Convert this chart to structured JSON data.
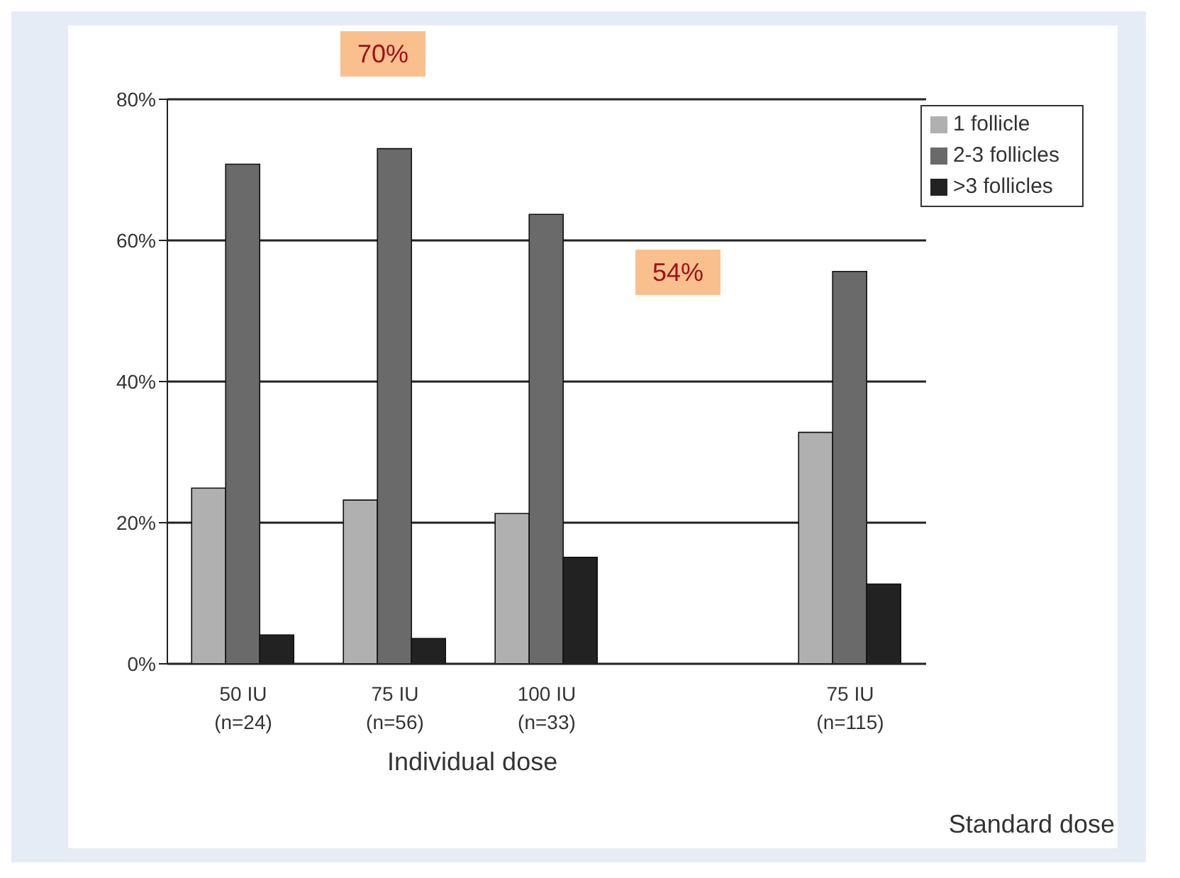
{
  "chart_data": {
    "type": "bar",
    "categories": [
      "50 IU (n=24)",
      "75 IU (n=56)",
      "100 IU (n=33)",
      null,
      "75 IU (n=115)"
    ],
    "series": [
      {
        "name": "1 follicle",
        "color": "#b0b0b0",
        "values": [
          24.9,
          23.2,
          21.3,
          null,
          32.8
        ]
      },
      {
        "name": "2-3 follicles",
        "color": "#6a6a6a",
        "values": [
          70.8,
          73,
          63.7,
          null,
          55.6
        ]
      },
      {
        "name": ">3 follicles",
        "color": "#222222",
        "values": [
          4.1,
          3.6,
          15.1,
          null,
          11.3
        ]
      }
    ],
    "ylim": [
      0,
      80
    ],
    "yticks": [
      {
        "value": 0,
        "label": "0%"
      },
      {
        "value": 20,
        "label": "20%"
      },
      {
        "value": 40,
        "label": "40%"
      },
      {
        "value": 60,
        "label": "60%"
      },
      {
        "value": 80,
        "label": "80%"
      }
    ],
    "xlabel": "Individual dose",
    "annotations": [
      "Standard dose",
      "70%",
      "54%"
    ],
    "grid": "y",
    "legend": "top right"
  }
}
